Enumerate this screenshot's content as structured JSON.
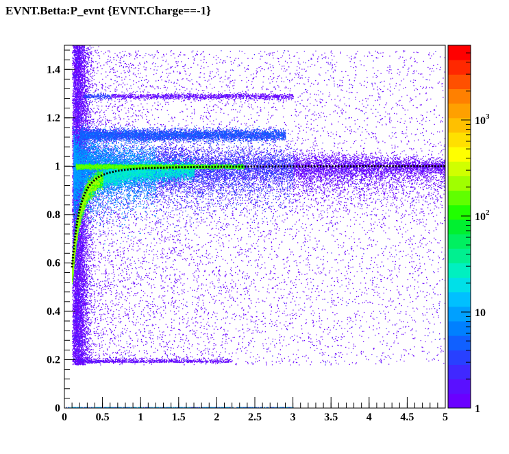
{
  "chart_data": {
    "type": "heatmap",
    "title": "EVNT.Betta:P_evnt {EVNT.Charge==-1}",
    "xlabel": "",
    "ylabel": "",
    "xlim": [
      0,
      5
    ],
    "ylim": [
      0,
      1.5
    ],
    "x_ticks": [
      "0",
      "0.5",
      "1",
      "1.5",
      "2",
      "2.5",
      "3",
      "3.5",
      "4",
      "4.5",
      "5"
    ],
    "y_ticks": [
      "0",
      "0.2",
      "0.4",
      "0.6",
      "0.8",
      "1",
      "1.2",
      "1.4"
    ],
    "colorbar": {
      "scale": "log",
      "range": [
        1,
        6000
      ],
      "labels": [
        {
          "value": 1,
          "base": "1",
          "exp": ""
        },
        {
          "value": 10,
          "base": "10",
          "exp": ""
        },
        {
          "value": 100,
          "base": "10",
          "exp": "2"
        },
        {
          "value": 1000,
          "base": "10",
          "exp": "3"
        }
      ],
      "colors": [
        "#6a00ff",
        "#5a10ff",
        "#4028ff",
        "#2840ff",
        "#1060ff",
        "#0080ff",
        "#00a0ff",
        "#00c0ff",
        "#00e0e8",
        "#00f0c0",
        "#00f090",
        "#00f060",
        "#00f030",
        "#20ff00",
        "#60ff00",
        "#a0ff00",
        "#d0ff00",
        "#ffff00",
        "#ffe000",
        "#ffc000",
        "#ffa000",
        "#ff8000",
        "#ff5000",
        "#ff2800",
        "#ff0000"
      ]
    },
    "overlay_curve": {
      "style": "dotted",
      "color": "#000000",
      "mass": 0.14,
      "description_points": [
        [
          0.1,
          0.58
        ],
        [
          0.2,
          0.82
        ],
        [
          0.3,
          0.91
        ],
        [
          0.5,
          0.963
        ],
        [
          1.0,
          0.99
        ],
        [
          2.0,
          0.998
        ],
        [
          5.0,
          1.0
        ]
      ]
    },
    "features": [
      {
        "name": "electron-band",
        "x_range": [
          0.15,
          5.0
        ],
        "y": 1.0
      },
      {
        "name": "pion-band",
        "x_range": [
          0.1,
          5.0
        ],
        "y_formula": "p/sqrt(p^2+0.1396^2)"
      },
      {
        "name": "upper-band",
        "x_range": [
          0.2,
          2.9
        ],
        "y": 1.13
      },
      {
        "name": "high-band",
        "x_range": [
          0.25,
          3.0
        ],
        "y": 1.29
      },
      {
        "name": "lower-cut",
        "x_range": [
          0.2,
          2.2
        ],
        "y": 0.19
      }
    ]
  }
}
